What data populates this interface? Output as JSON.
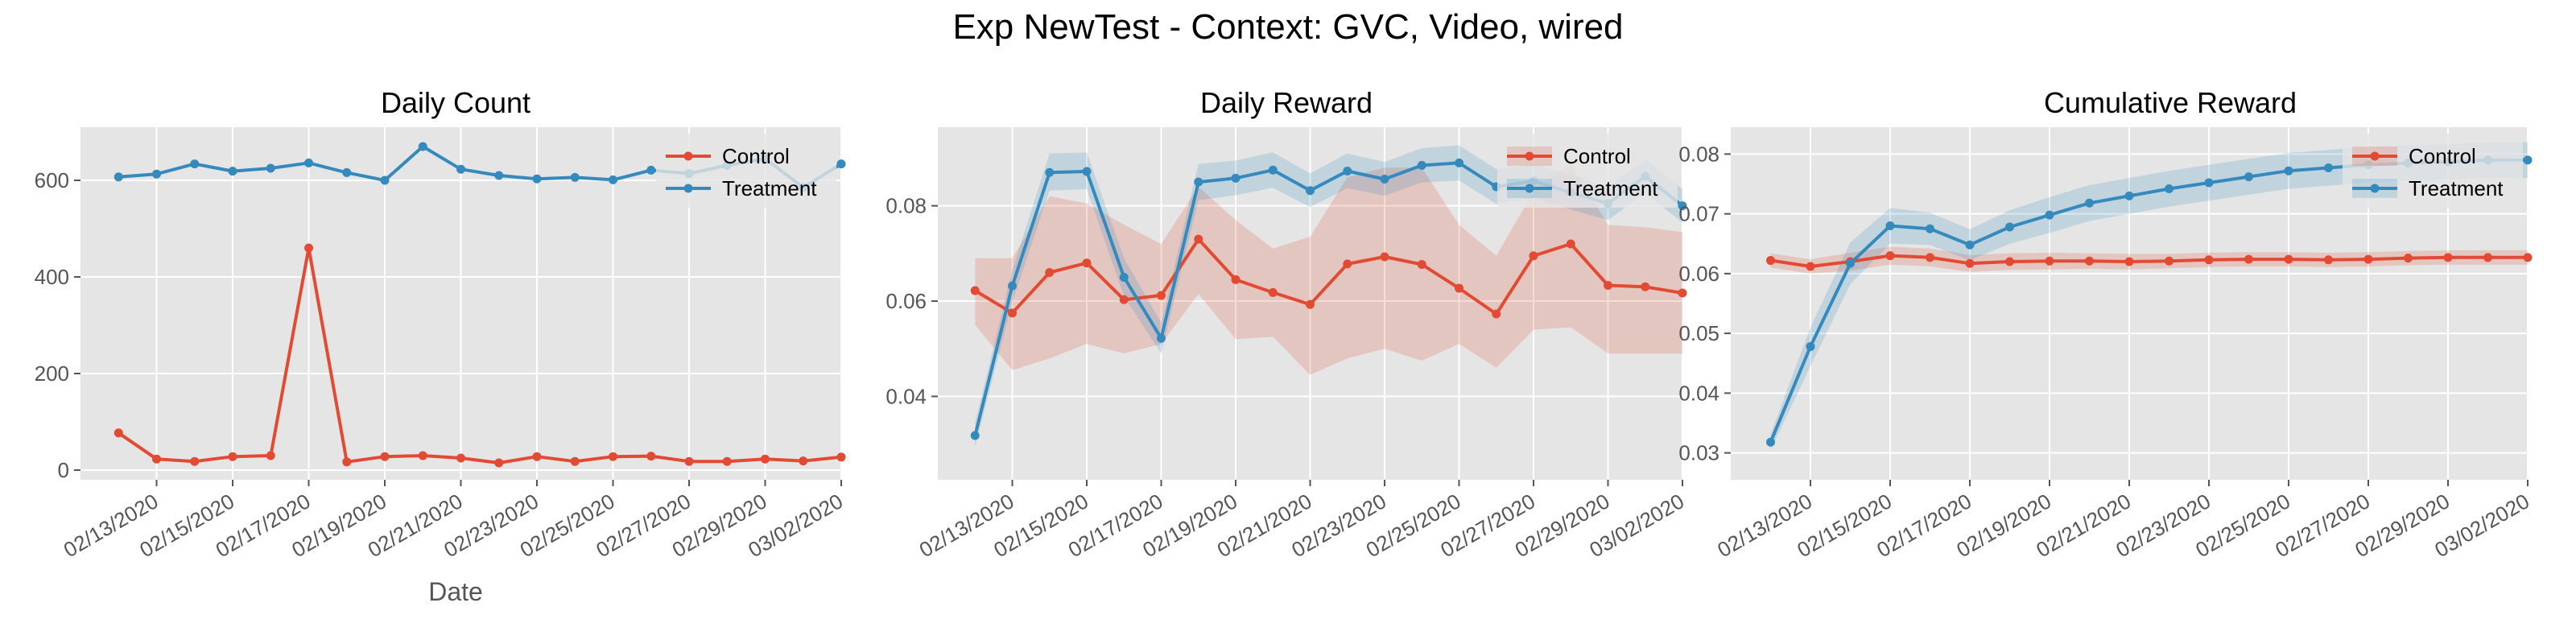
{
  "figure": {
    "suptitle": "Exp NewTest - Context: GVC, Video, wired"
  },
  "chart_data": [
    {
      "type": "line",
      "title": "Daily Count",
      "xlabel": "Date",
      "ylabel": "",
      "x": [
        "02/12/2020",
        "02/13/2020",
        "02/14/2020",
        "02/15/2020",
        "02/16/2020",
        "02/17/2020",
        "02/18/2020",
        "02/19/2020",
        "02/20/2020",
        "02/21/2020",
        "02/22/2020",
        "02/23/2020",
        "02/24/2020",
        "02/25/2020",
        "02/26/2020",
        "02/27/2020",
        "02/28/2020",
        "02/29/2020",
        "03/01/2020",
        "03/02/2020"
      ],
      "xticks": [
        "02/13/2020",
        "02/15/2020",
        "02/17/2020",
        "02/19/2020",
        "02/21/2020",
        "02/23/2020",
        "02/25/2020",
        "02/27/2020",
        "02/29/2020",
        "03/02/2020"
      ],
      "xlim": [
        "02/11/2020",
        "03/02/2020"
      ],
      "yticks": [
        0,
        200,
        400,
        600
      ],
      "ylim": [
        -20,
        710
      ],
      "grid": true,
      "legend_position": "upper right",
      "series": [
        {
          "name": "Control",
          "color": "#e24a33",
          "values": [
            77,
            23,
            18,
            28,
            30,
            460,
            17,
            28,
            30,
            25,
            15,
            28,
            18,
            28,
            29,
            18,
            18,
            23,
            19,
            27
          ]
        },
        {
          "name": "Treatment",
          "color": "#348abd",
          "values": [
            607,
            613,
            634,
            619,
            625,
            636,
            616,
            600,
            670,
            623,
            610,
            603,
            606,
            601,
            621,
            614,
            631,
            645,
            585,
            634
          ]
        }
      ]
    },
    {
      "type": "line",
      "title": "Daily Reward",
      "xlabel": "",
      "ylabel": "",
      "x": [
        "02/12/2020",
        "02/13/2020",
        "02/14/2020",
        "02/15/2020",
        "02/16/2020",
        "02/17/2020",
        "02/18/2020",
        "02/19/2020",
        "02/20/2020",
        "02/21/2020",
        "02/22/2020",
        "02/23/2020",
        "02/24/2020",
        "02/25/2020",
        "02/26/2020",
        "02/27/2020",
        "02/28/2020",
        "02/29/2020",
        "03/01/2020",
        "03/02/2020"
      ],
      "xticks": [
        "02/13/2020",
        "02/15/2020",
        "02/17/2020",
        "02/19/2020",
        "02/21/2020",
        "02/23/2020",
        "02/25/2020",
        "02/27/2020",
        "02/29/2020",
        "03/02/2020"
      ],
      "xlim": [
        "02/11/2020",
        "03/02/2020"
      ],
      "yticks": [
        0.04,
        0.06,
        0.08
      ],
      "ylim": [
        0.0225,
        0.0965
      ],
      "grid": true,
      "legend_position": "upper right",
      "series": [
        {
          "name": "Control",
          "color": "#e24a33",
          "values": [
            0.0622,
            0.0575,
            0.066,
            0.068,
            0.0603,
            0.0612,
            0.073,
            0.0645,
            0.0618,
            0.0593,
            0.0678,
            0.0693,
            0.0677,
            0.0627,
            0.0573,
            0.0695,
            0.072,
            0.0633,
            0.063,
            0.0617
          ],
          "lower": [
            0.055,
            0.0455,
            0.048,
            0.051,
            0.049,
            0.051,
            0.0615,
            0.052,
            0.0525,
            0.0445,
            0.048,
            0.05,
            0.0475,
            0.051,
            0.046,
            0.054,
            0.0545,
            0.049,
            0.049,
            0.049
          ],
          "upper": [
            0.069,
            0.069,
            0.082,
            0.0805,
            0.076,
            0.072,
            0.084,
            0.077,
            0.071,
            0.0735,
            0.086,
            0.088,
            0.088,
            0.076,
            0.0695,
            0.083,
            0.089,
            0.076,
            0.0755,
            0.0745
          ]
        },
        {
          "name": "Treatment",
          "color": "#348abd",
          "values": [
            0.0318,
            0.0632,
            0.087,
            0.0872,
            0.065,
            0.0522,
            0.085,
            0.0858,
            0.0875,
            0.0832,
            0.0873,
            0.0856,
            0.0885,
            0.089,
            0.084,
            0.0852,
            0.0828,
            0.0805,
            0.0862,
            0.08
          ],
          "lower": [
            0.0295,
            0.0598,
            0.0832,
            0.0835,
            0.061,
            0.049,
            0.0812,
            0.0822,
            0.0838,
            0.0797,
            0.0837,
            0.0821,
            0.0849,
            0.0853,
            0.0804,
            0.0816,
            0.0792,
            0.077,
            0.0826,
            0.0765
          ],
          "upper": [
            0.0345,
            0.0665,
            0.091,
            0.0912,
            0.069,
            0.0555,
            0.0888,
            0.0895,
            0.0912,
            0.0868,
            0.091,
            0.0892,
            0.0921,
            0.0927,
            0.0877,
            0.0888,
            0.0865,
            0.084,
            0.0898,
            0.0835
          ]
        }
      ]
    },
    {
      "type": "line",
      "title": "Cumulative Reward",
      "xlabel": "",
      "ylabel": "",
      "x": [
        "02/12/2020",
        "02/13/2020",
        "02/14/2020",
        "02/15/2020",
        "02/16/2020",
        "02/17/2020",
        "02/18/2020",
        "02/19/2020",
        "02/20/2020",
        "02/21/2020",
        "02/22/2020",
        "02/23/2020",
        "02/24/2020",
        "02/25/2020",
        "02/26/2020",
        "02/27/2020",
        "02/28/2020",
        "02/29/2020",
        "03/01/2020",
        "03/02/2020"
      ],
      "xticks": [
        "02/13/2020",
        "02/15/2020",
        "02/17/2020",
        "02/19/2020",
        "02/21/2020",
        "02/23/2020",
        "02/25/2020",
        "02/27/2020",
        "02/29/2020",
        "03/02/2020"
      ],
      "xlim": [
        "02/11/2020",
        "03/02/2020"
      ],
      "yticks": [
        0.03,
        0.04,
        0.05,
        0.06,
        0.07,
        0.08
      ],
      "ylim": [
        0.0255,
        0.0845
      ],
      "grid": true,
      "legend_position": "upper right",
      "series": [
        {
          "name": "Control",
          "color": "#e24a33",
          "values": [
            0.0622,
            0.0612,
            0.062,
            0.063,
            0.0627,
            0.0617,
            0.062,
            0.0621,
            0.0621,
            0.062,
            0.0621,
            0.0623,
            0.0624,
            0.0624,
            0.0623,
            0.0624,
            0.0626,
            0.0627,
            0.0627,
            0.0627
          ],
          "lower": [
            0.061,
            0.06,
            0.0605,
            0.0615,
            0.0612,
            0.0603,
            0.0606,
            0.0607,
            0.0608,
            0.0607,
            0.0609,
            0.0611,
            0.0612,
            0.0612,
            0.0611,
            0.0612,
            0.0614,
            0.0615,
            0.0615,
            0.0615
          ],
          "upper": [
            0.0634,
            0.0624,
            0.0635,
            0.0645,
            0.0642,
            0.0631,
            0.0634,
            0.0635,
            0.0634,
            0.0633,
            0.0633,
            0.0635,
            0.0636,
            0.0636,
            0.0635,
            0.0636,
            0.0638,
            0.0639,
            0.0639,
            0.0639
          ]
        },
        {
          "name": "Treatment",
          "color": "#348abd",
          "values": [
            0.0318,
            0.0478,
            0.0617,
            0.068,
            0.0675,
            0.0648,
            0.0678,
            0.0698,
            0.0718,
            0.073,
            0.0742,
            0.0752,
            0.0762,
            0.0772,
            0.0777,
            0.0782,
            0.0785,
            0.0787,
            0.079,
            0.079
          ],
          "lower": [
            0.0305,
            0.0445,
            0.0582,
            0.065,
            0.0648,
            0.0622,
            0.065,
            0.0668,
            0.0688,
            0.07,
            0.0712,
            0.0722,
            0.0732,
            0.0742,
            0.0747,
            0.0752,
            0.0755,
            0.0757,
            0.076,
            0.076
          ],
          "upper": [
            0.0331,
            0.051,
            0.0652,
            0.071,
            0.0702,
            0.0674,
            0.0706,
            0.0728,
            0.0748,
            0.076,
            0.0772,
            0.0782,
            0.0792,
            0.0802,
            0.0807,
            0.0812,
            0.0815,
            0.0817,
            0.082,
            0.082
          ]
        }
      ]
    }
  ]
}
